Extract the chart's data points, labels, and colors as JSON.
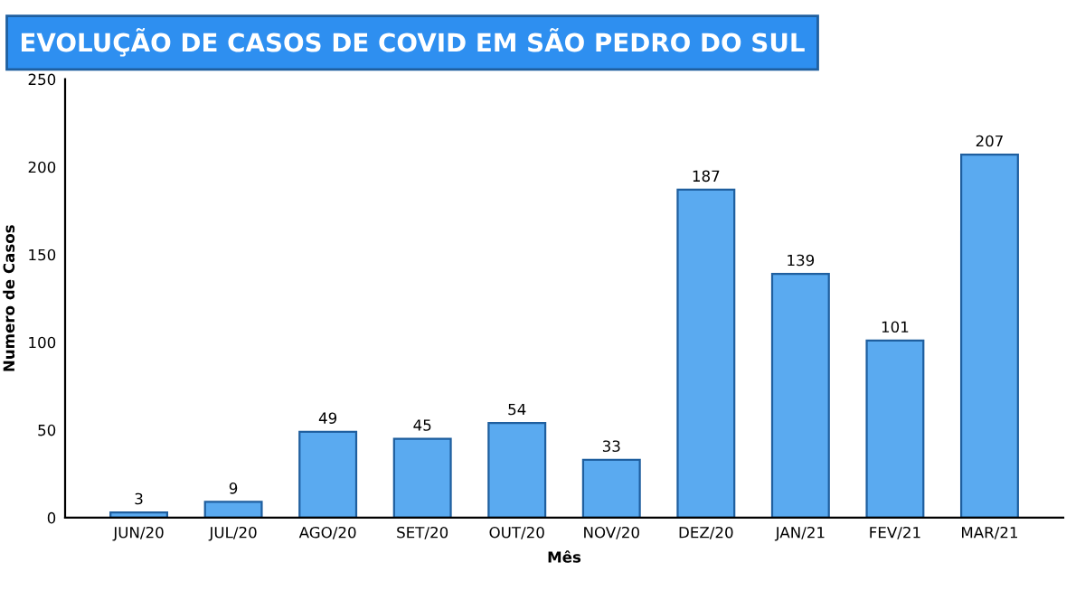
{
  "chart_data": {
    "type": "bar",
    "title": "EVOLUÇÃO DE CASOS DE COVID EM SÃO PEDRO DO SUL",
    "xlabel": "Mês",
    "ylabel": "Numero de Casos",
    "categories": [
      "JUN/20",
      "JUL/20",
      "AGO/20",
      "SET/20",
      "OUT/20",
      "NOV/20",
      "DEZ/20",
      "JAN/21",
      "FEV/21",
      "MAR/21"
    ],
    "values": [
      3,
      9,
      49,
      45,
      54,
      33,
      187,
      139,
      101,
      207
    ],
    "color": "#5aaaf0",
    "ylim": [
      0,
      250
    ],
    "yticks": [
      0,
      50,
      100,
      150,
      200,
      250
    ],
    "grid": false,
    "data_labels": true
  }
}
